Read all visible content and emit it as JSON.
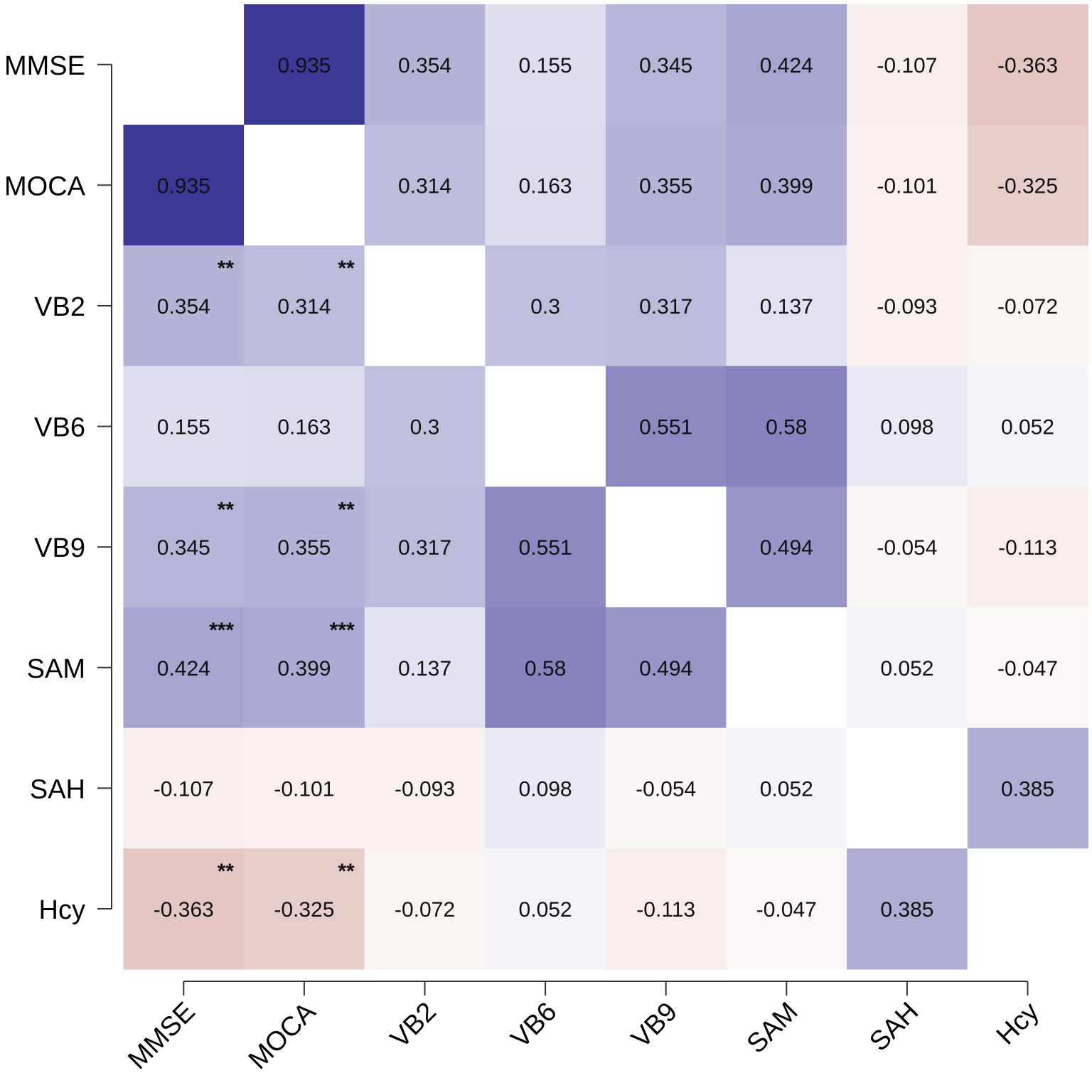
{
  "chart_data": {
    "type": "heatmap",
    "title": "",
    "xlabel": "",
    "ylabel": "",
    "variables": [
      "MMSE",
      "MOCA",
      "VB2",
      "VB6",
      "VB9",
      "SAM",
      "SAH",
      "Hcy"
    ],
    "matrix": [
      [
        null,
        0.935,
        0.354,
        0.155,
        0.345,
        0.424,
        -0.107,
        -0.363
      ],
      [
        0.935,
        null,
        0.314,
        0.163,
        0.355,
        0.399,
        -0.101,
        -0.325
      ],
      [
        0.354,
        0.314,
        null,
        0.3,
        0.317,
        0.137,
        -0.093,
        -0.072
      ],
      [
        0.155,
        0.163,
        0.3,
        null,
        0.551,
        0.58,
        0.098,
        0.052
      ],
      [
        0.345,
        0.355,
        0.317,
        0.551,
        null,
        0.494,
        -0.054,
        -0.113
      ],
      [
        0.424,
        0.399,
        0.137,
        0.58,
        0.494,
        null,
        0.052,
        -0.047
      ],
      [
        -0.107,
        -0.101,
        -0.093,
        0.098,
        -0.054,
        0.052,
        null,
        0.385
      ],
      [
        -0.363,
        -0.325,
        -0.072,
        0.052,
        -0.113,
        -0.047,
        0.385,
        null
      ]
    ],
    "labels": [
      [
        "",
        "0.935",
        "0.354",
        "0.155",
        "0.345",
        "0.424",
        "-0.107",
        "-0.363"
      ],
      [
        "0.935",
        "",
        "0.314",
        "0.163",
        "0.355",
        "0.399",
        "-0.101",
        "-0.325"
      ],
      [
        "0.354",
        "0.314",
        "",
        "0.3",
        "0.317",
        "0.137",
        "-0.093",
        "-0.072"
      ],
      [
        "0.155",
        "0.163",
        "0.3",
        "",
        "0.551",
        "0.58",
        "0.098",
        "0.052"
      ],
      [
        "0.345",
        "0.355",
        "0.317",
        "0.551",
        "",
        "0.494",
        "-0.054",
        "-0.113"
      ],
      [
        "0.424",
        "0.399",
        "0.137",
        "0.58",
        "0.494",
        "",
        "0.052",
        "-0.047"
      ],
      [
        "-0.107",
        "-0.101",
        "-0.093",
        "0.098",
        "-0.054",
        "0.052",
        "",
        "0.385"
      ],
      [
        "-0.363",
        "-0.325",
        "-0.072",
        "0.052",
        "-0.113",
        "-0.047",
        "0.385",
        ""
      ]
    ],
    "significance": [
      [
        "",
        "",
        "",
        "",
        "",
        "",
        "",
        ""
      ],
      [
        "",
        "",
        "",
        "",
        "",
        "",
        "",
        ""
      ],
      [
        "**",
        "**",
        "",
        "",
        "",
        "",
        "",
        ""
      ],
      [
        "",
        "",
        "",
        "",
        "",
        "",
        "",
        ""
      ],
      [
        "**",
        "**",
        "",
        "",
        "",
        "",
        "",
        ""
      ],
      [
        "***",
        "***",
        "",
        "",
        "",
        "",
        "",
        ""
      ],
      [
        "",
        "",
        "",
        "",
        "",
        "",
        "",
        ""
      ],
      [
        "**",
        "**",
        "",
        "",
        "",
        "",
        "",
        ""
      ]
    ],
    "color_scale": {
      "negative": "#b5655a",
      "zero": "#ffffff",
      "positive": "#2e2a8f",
      "range": [
        -1,
        1
      ]
    },
    "diagonal_color": "#ffffff"
  }
}
